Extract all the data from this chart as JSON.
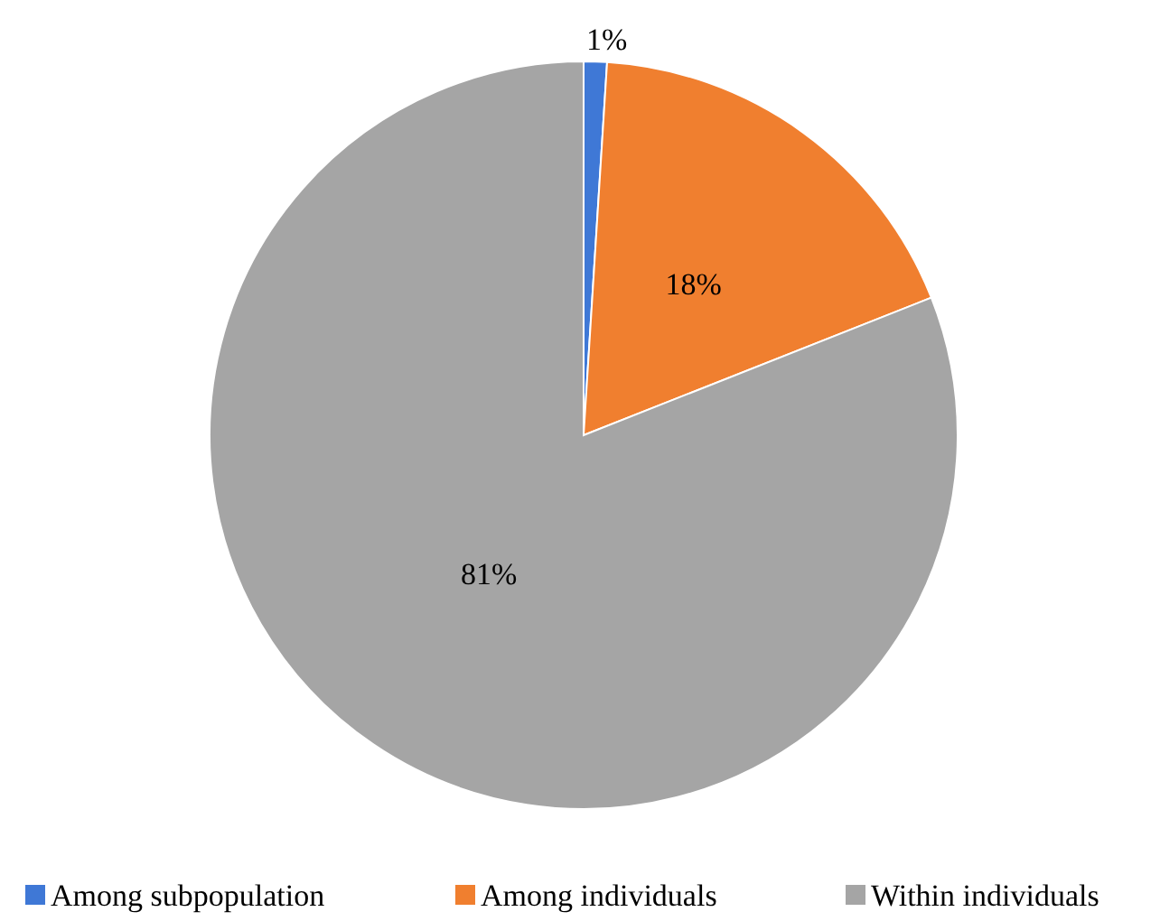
{
  "chart_data": {
    "type": "pie",
    "categories": [
      "Among subpopulation",
      "Among individuals",
      "Within individuals"
    ],
    "values": [
      1,
      18,
      81
    ],
    "colors": [
      "#3f78d6",
      "#f07f2f",
      "#a5a5a5"
    ],
    "value_labels": [
      "1%",
      "18%",
      "81%"
    ],
    "legend": "bottom"
  }
}
